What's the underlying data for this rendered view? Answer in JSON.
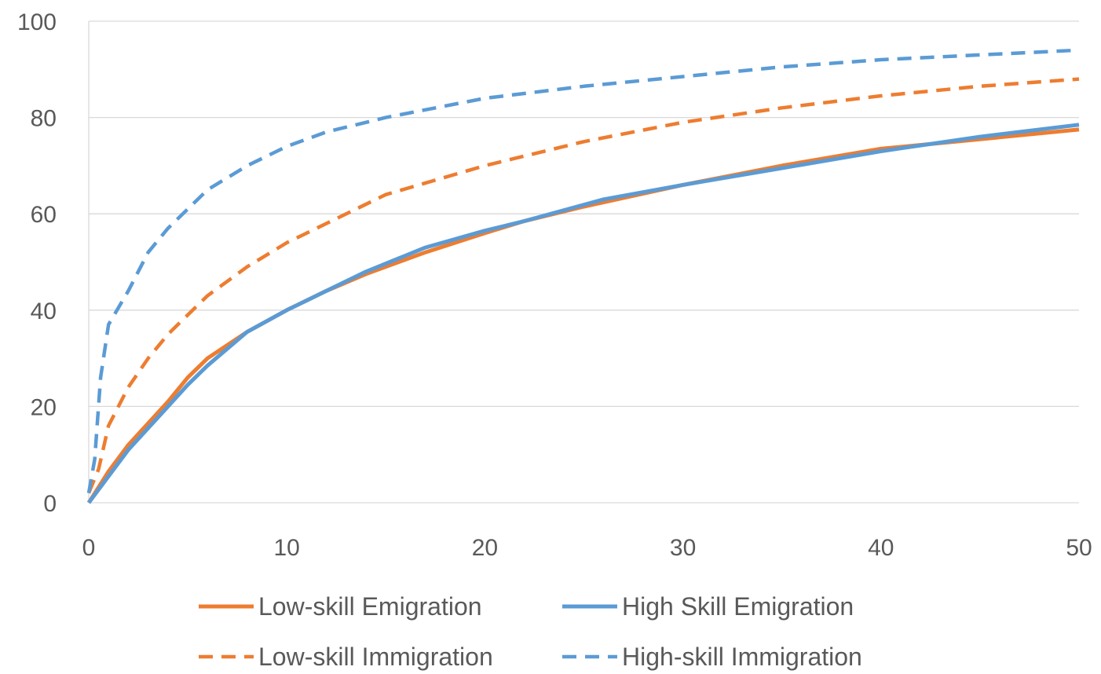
{
  "chart_data": {
    "type": "line",
    "title": "",
    "xlabel": "",
    "ylabel": "",
    "xlim": [
      0,
      50
    ],
    "ylim": [
      0,
      100
    ],
    "x_ticks": [
      0,
      10,
      20,
      30,
      40,
      50
    ],
    "y_ticks": [
      0,
      20,
      40,
      60,
      80,
      100
    ],
    "grid": "horizontal",
    "legend_position": "bottom",
    "series": [
      {
        "name": "Low-skill Emigration",
        "color": "#ED7D31",
        "dash": "solid",
        "x": [
          0,
          1,
          2,
          4,
          5,
          6,
          8,
          10,
          12,
          14,
          17,
          20,
          22,
          25,
          30,
          35,
          40,
          45,
          50
        ],
        "y": [
          0,
          6.5,
          12,
          21,
          26,
          30,
          35.5,
          40,
          44,
          47.5,
          52,
          56,
          58.5,
          61.5,
          66,
          70,
          73.5,
          75.5,
          77.5
        ]
      },
      {
        "name": "High Skill Emigration",
        "color": "#5B9BD5",
        "dash": "solid",
        "x": [
          0,
          1,
          2,
          4,
          5,
          6,
          8,
          10,
          12,
          14,
          17,
          20,
          22,
          26,
          30,
          35,
          40,
          45,
          50
        ],
        "y": [
          0,
          5.5,
          11,
          20,
          24.5,
          28.5,
          35.5,
          40,
          44,
          48,
          53,
          56.5,
          58.5,
          63,
          66,
          69.5,
          73,
          76,
          78.5
        ]
      },
      {
        "name": "Low-skill Immigration",
        "color": "#ED7D31",
        "dash": "dashed",
        "x": [
          0,
          0.5,
          1,
          2,
          3,
          4,
          5,
          6,
          8,
          10,
          12,
          15,
          20,
          25,
          30,
          35,
          40,
          45,
          50
        ],
        "y": [
          2,
          7,
          16,
          24,
          30,
          35,
          39,
          43,
          49,
          54,
          58,
          64,
          70,
          75,
          79,
          82,
          84.5,
          86.5,
          88
        ]
      },
      {
        "name": "High-skill Immigration",
        "color": "#5B9BD5",
        "dash": "dashed",
        "x": [
          0,
          0.3,
          0.6,
          1,
          2,
          3,
          4,
          5,
          6,
          8,
          10,
          12,
          15,
          20,
          25,
          30,
          35,
          40,
          45,
          50
        ],
        "y": [
          2,
          9,
          26,
          37,
          44,
          52,
          57,
          61,
          65,
          70,
          74,
          77,
          80,
          84,
          86.5,
          88.5,
          90.5,
          92,
          93,
          94
        ]
      }
    ]
  }
}
